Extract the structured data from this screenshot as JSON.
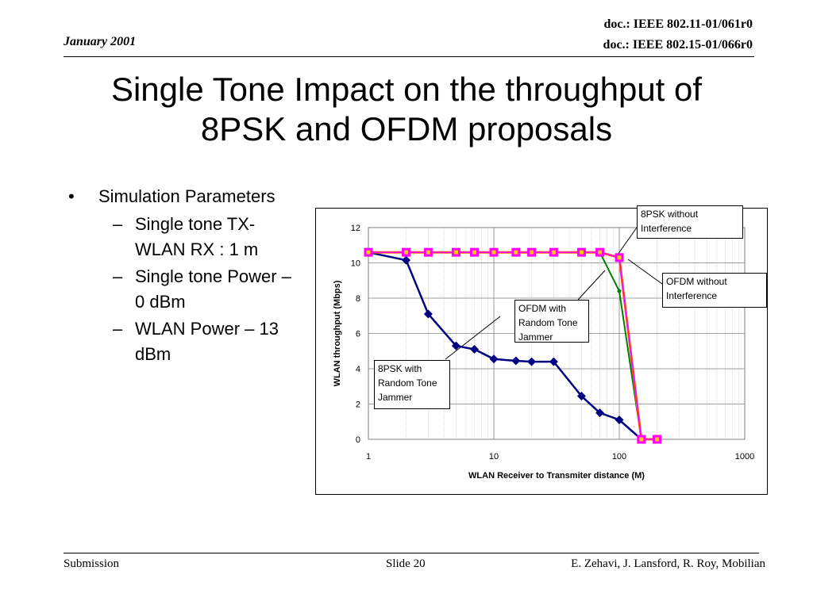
{
  "header": {
    "date": "January 2001",
    "doc1": "doc.: IEEE 802.11-01/061r0",
    "doc2": "doc.: IEEE 802.15-01/066r0"
  },
  "title": {
    "line1": "Single Tone Impact on the throughput of",
    "line2": "8PSK and OFDM proposals"
  },
  "bullets": {
    "main": "Simulation Parameters",
    "items": [
      "Single tone TX-WLAN RX : 1 m",
      "Single tone Power – 0 dBm",
      "WLAN Power – 13 dBm"
    ]
  },
  "chart_data": {
    "type": "line",
    "xlabel": "WLAN Receiver to Transmiter distance (M)",
    "ylabel": "WLAN throughput (Mbps)",
    "xscale": "log",
    "xlim": [
      1,
      1000
    ],
    "ylim": [
      0,
      12
    ],
    "xticks": [
      "1",
      "10",
      "100",
      "1000"
    ],
    "yticks": [
      "0",
      "2",
      "4",
      "6",
      "8",
      "10",
      "12"
    ],
    "grid": true,
    "colors": {
      "8PSK with Random Tone Jammer": "#000080",
      "OFDM with Random Tone Jammer": "#008000",
      "8PSK without Interference": "#ff00ff",
      "OFDM without Interference": "#ff6600"
    },
    "series": [
      {
        "name": "OFDM with Random Tone Jammer",
        "marker": "circle",
        "x": [
          1,
          2,
          3,
          5,
          7,
          10,
          15,
          20,
          30,
          50,
          70,
          100,
          150,
          200
        ],
        "y": [
          10.6,
          10.6,
          10.6,
          10.6,
          10.6,
          10.6,
          10.6,
          10.6,
          10.6,
          10.6,
          10.6,
          8.4,
          0,
          0
        ]
      },
      {
        "name": "8PSK with Random Tone Jammer",
        "marker": "diamond",
        "x": [
          1,
          2,
          3,
          5,
          7,
          10,
          15,
          20,
          30,
          50,
          70,
          100,
          150,
          200
        ],
        "y": [
          10.6,
          10.15,
          7.1,
          5.3,
          5.1,
          4.55,
          4.45,
          4.4,
          4.4,
          2.45,
          1.5,
          1.1,
          0,
          0
        ]
      },
      {
        "name": "OFDM without Interference",
        "marker": "none",
        "x": [
          1,
          2,
          3,
          5,
          7,
          10,
          15,
          20,
          30,
          50,
          70,
          100,
          150,
          200
        ],
        "y": [
          10.6,
          10.6,
          10.6,
          10.6,
          10.6,
          10.6,
          10.6,
          10.6,
          10.6,
          10.6,
          10.6,
          10.3,
          0,
          0
        ]
      },
      {
        "name": "8PSK without Interference",
        "marker": "square",
        "x": [
          1,
          2,
          3,
          5,
          7,
          10,
          15,
          20,
          30,
          50,
          70,
          100,
          150,
          200
        ],
        "y": [
          10.6,
          10.6,
          10.6,
          10.6,
          10.6,
          10.6,
          10.6,
          10.6,
          10.6,
          10.6,
          10.6,
          10.3,
          0,
          0
        ]
      }
    ],
    "callouts": [
      {
        "text_line1": "8PSK without",
        "text_line2": "Interference",
        "text_line3": ""
      },
      {
        "text_line1": "OFDM without",
        "text_line2": "Interference",
        "text_line3": ""
      },
      {
        "text_line1": "OFDM with",
        "text_line2": "Random Tone",
        "text_line3": "Jammer"
      },
      {
        "text_line1": "8PSK with",
        "text_line2": "Random Tone",
        "text_line3": "Jammer"
      }
    ]
  },
  "footer": {
    "left": "Submission",
    "center": "Slide 20",
    "right": "E. Zehavi, J. Lansford, R. Roy, Mobilian"
  }
}
